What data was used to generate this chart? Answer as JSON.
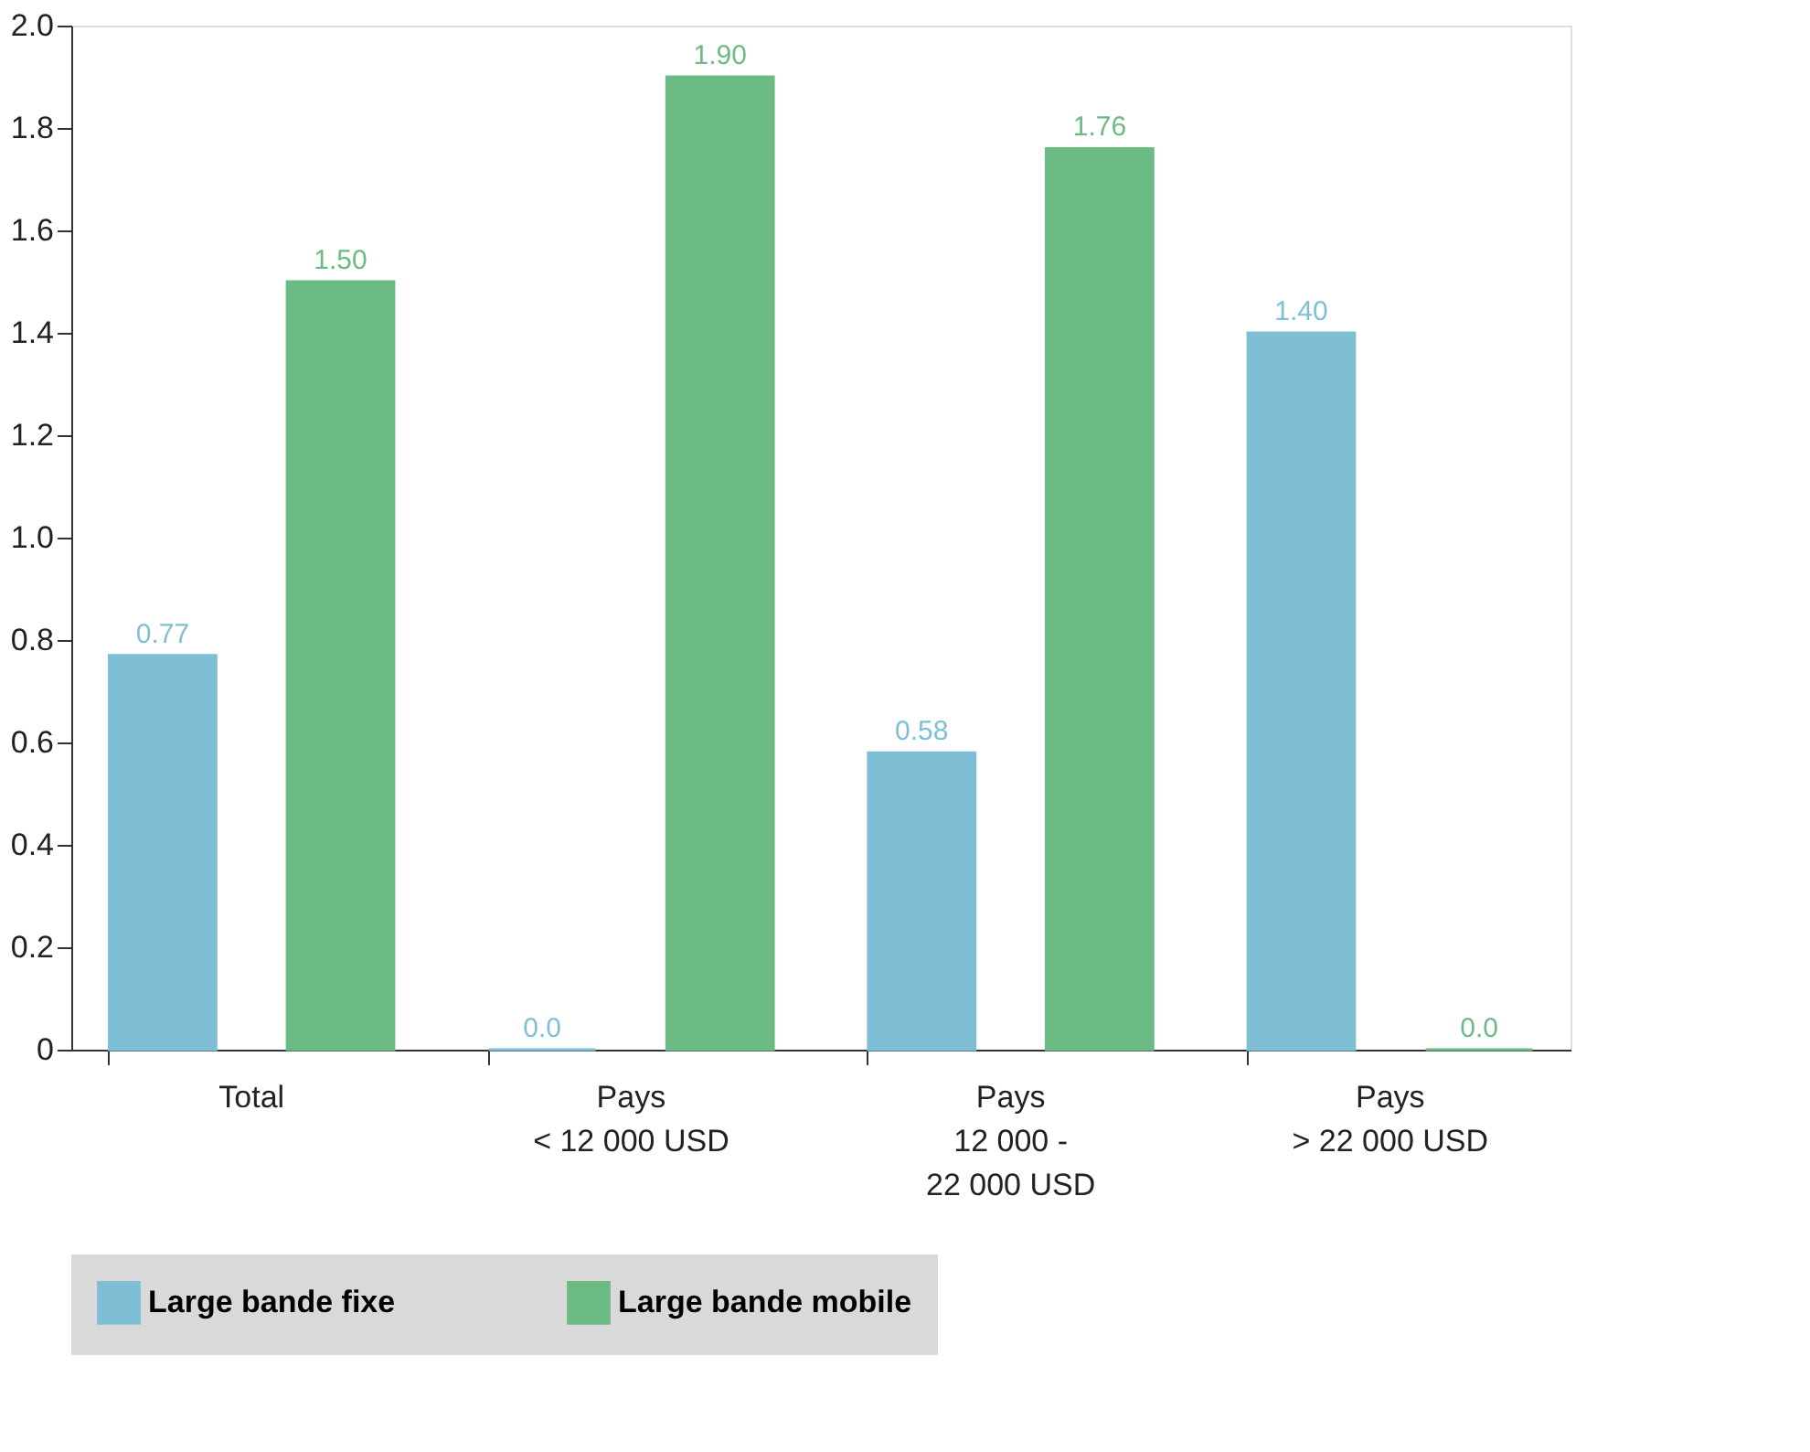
{
  "chart_data": {
    "type": "bar",
    "categories": [
      "Total",
      "Pays\n< 12 000 USD",
      "Pays\n12 000 -\n22 000 USD",
      "Pays\n> 22 000 USD"
    ],
    "series": [
      {
        "name": "Large bande fixe",
        "color": "#7fbfd6",
        "values": [
          0.77,
          0.0,
          0.58,
          1.4
        ],
        "value_labels": [
          "0.77",
          "0.0",
          "0.58",
          "1.40"
        ]
      },
      {
        "name": "Large bande mobile",
        "color": "#6dbb84",
        "values": [
          1.5,
          1.9,
          1.76,
          0.0
        ],
        "value_labels": [
          "1.50",
          "1.90",
          "1.76",
          "0.0"
        ]
      }
    ],
    "ylim": [
      0,
      2.0
    ],
    "yticks": [
      0,
      0.2,
      0.4,
      0.6,
      0.8,
      {
        "value": 1.0,
        "label": "1.0"
      },
      1.2,
      1.4,
      1.6,
      1.8,
      {
        "value": 2.0,
        "label": "2.0"
      }
    ],
    "grid": false,
    "legend": "bottom"
  }
}
